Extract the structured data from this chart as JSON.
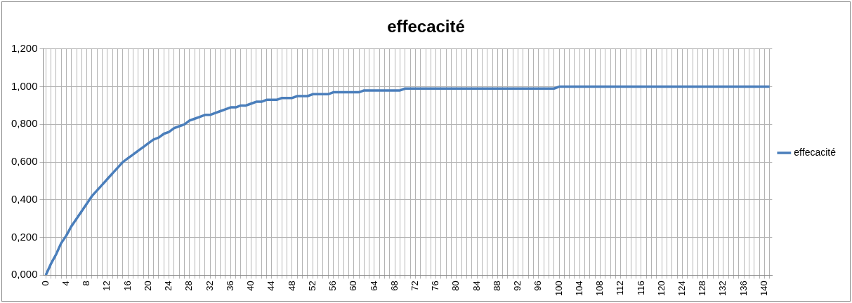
{
  "chart_data": {
    "type": "line",
    "title": "effecacité",
    "categories": [
      "0",
      null,
      null,
      null,
      "4",
      null,
      null,
      null,
      "8",
      null,
      null,
      null,
      "12",
      null,
      null,
      null,
      "16",
      null,
      null,
      null,
      "20",
      null,
      null,
      null,
      "24",
      null,
      null,
      null,
      "28",
      null,
      null,
      null,
      "32",
      null,
      null,
      null,
      "36",
      null,
      null,
      null,
      "40",
      null,
      null,
      null,
      "44",
      null,
      null,
      null,
      "48",
      null,
      null,
      null,
      "52",
      null,
      null,
      null,
      "56",
      null,
      null,
      null,
      "60",
      null,
      null,
      null,
      "64",
      null,
      null,
      null,
      "68",
      null,
      null,
      null,
      "72",
      null,
      null,
      null,
      "76",
      null,
      null,
      null,
      "80",
      null,
      null,
      null,
      "84",
      null,
      null,
      null,
      "88",
      null,
      null,
      null,
      "92",
      null,
      null,
      null,
      "96",
      null,
      null,
      null,
      "100",
      null,
      null,
      null,
      "104",
      null,
      null,
      null,
      "108",
      null,
      null,
      null,
      "112",
      null,
      null,
      null,
      "116",
      null,
      null,
      null,
      "120",
      null,
      null,
      null,
      "124",
      null,
      null,
      null,
      "128",
      null,
      null,
      null,
      "132",
      null,
      null,
      null,
      "136",
      null,
      null,
      null,
      "140",
      null
    ],
    "series": [
      {
        "name": "effecacité",
        "color": "#4a7ebb",
        "values": [
          0,
          0.06,
          0.11,
          0.17,
          0.21,
          0.26,
          0.3,
          0.34,
          0.38,
          0.42,
          0.45,
          0.48,
          0.51,
          0.54,
          0.57,
          0.6,
          0.62,
          0.64,
          0.66,
          0.68,
          0.7,
          0.72,
          0.73,
          0.75,
          0.76,
          0.78,
          0.79,
          0.8,
          0.82,
          0.83,
          0.84,
          0.85,
          0.85,
          0.86,
          0.87,
          0.88,
          0.89,
          0.89,
          0.9,
          0.9,
          0.91,
          0.92,
          0.92,
          0.93,
          0.93,
          0.93,
          0.94,
          0.94,
          0.94,
          0.95,
          0.95,
          0.95,
          0.96,
          0.96,
          0.96,
          0.96,
          0.97,
          0.97,
          0.97,
          0.97,
          0.97,
          0.97,
          0.98,
          0.98,
          0.98,
          0.98,
          0.98,
          0.98,
          0.98,
          0.98,
          0.99,
          0.99,
          0.99,
          0.99,
          0.99,
          0.99,
          0.99,
          0.99,
          0.99,
          0.99,
          0.99,
          0.99,
          0.99,
          0.99,
          0.99,
          0.99,
          0.99,
          0.99,
          0.99,
          0.99,
          0.99,
          0.99,
          0.99,
          0.99,
          0.99,
          0.99,
          0.99,
          0.99,
          0.99,
          0.99,
          1,
          1,
          1,
          1,
          1,
          1,
          1,
          1,
          1,
          1,
          1,
          1,
          1,
          1,
          1,
          1,
          1,
          1,
          1,
          1,
          1,
          1,
          1,
          1,
          1,
          1,
          1,
          1,
          1,
          1,
          1,
          1,
          1,
          1,
          1,
          1,
          1,
          1,
          1,
          1,
          1,
          1
        ]
      }
    ],
    "ylim": [
      0,
      1.2
    ],
    "yticks": [
      {
        "value": 0,
        "label": "0,000"
      },
      {
        "value": 0.2,
        "label": "0,200"
      },
      {
        "value": 0.4,
        "label": "0,400"
      },
      {
        "value": 0.6,
        "label": "0,600"
      },
      {
        "value": 0.8,
        "label": "0,800"
      },
      {
        "value": 1,
        "label": "1,000"
      },
      {
        "value": 1.2,
        "label": "1,200"
      }
    ],
    "grid": true,
    "legend": "right"
  }
}
